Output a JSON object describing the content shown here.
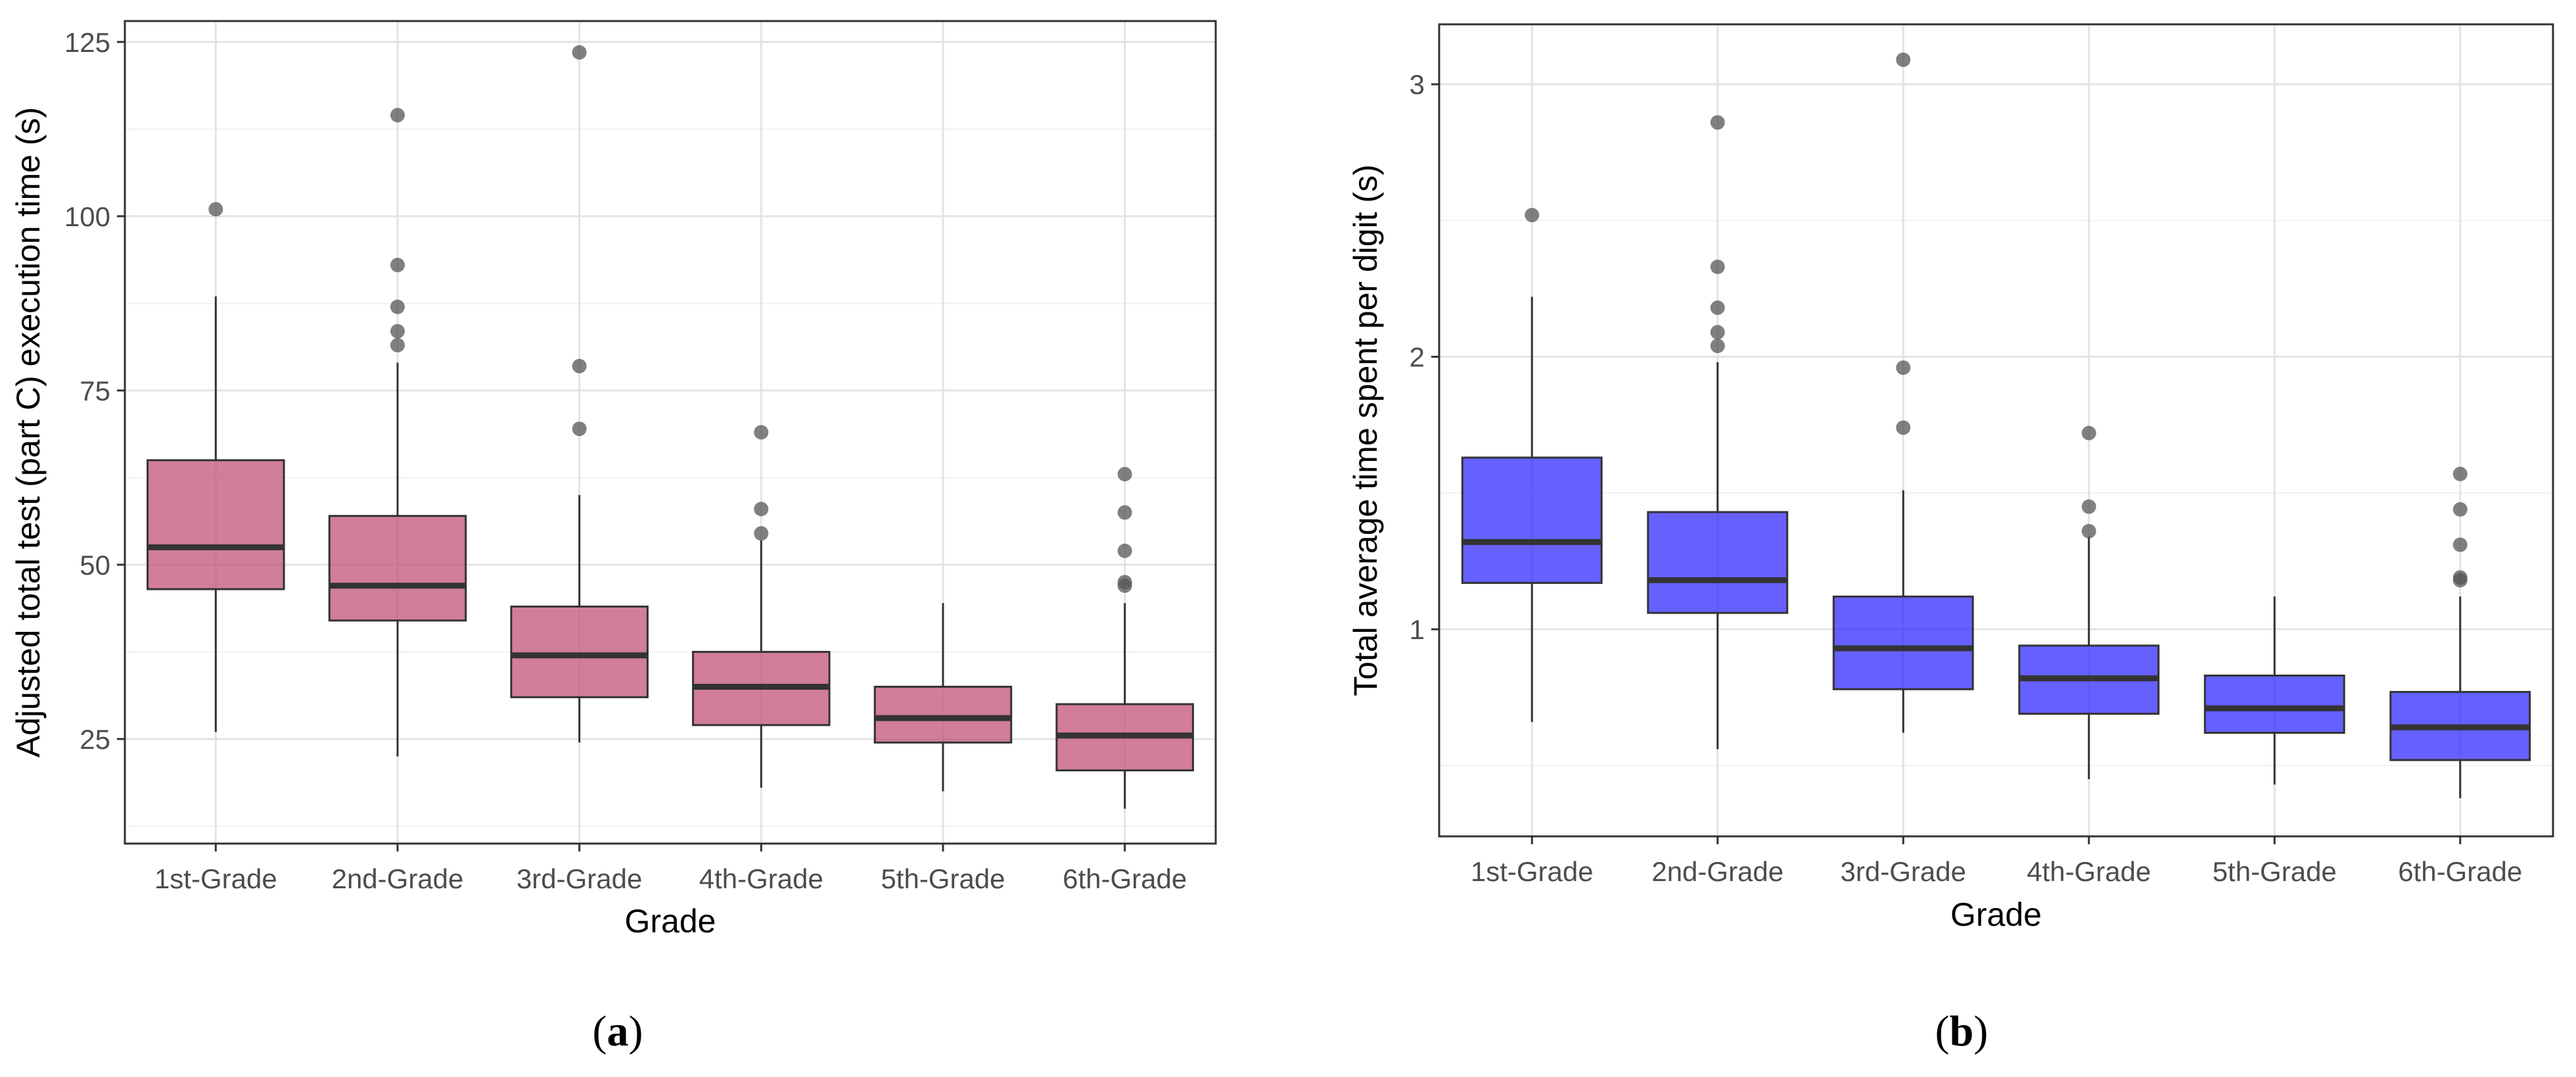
{
  "chart_data": [
    {
      "type": "box",
      "panel": "(a)",
      "caption": {
        "open": "(",
        "letter": "a",
        "close": ")"
      },
      "xlabel": "Grade",
      "ylabel": "Adjusted total test (part C) execution time (s)",
      "categories": [
        "1st-Grade",
        "2nd-Grade",
        "3rd-Grade",
        "4th-Grade",
        "5th-Grade",
        "6th-Grade"
      ],
      "yticks": [
        25,
        50,
        75,
        100,
        125
      ],
      "ylim": [
        10,
        128
      ],
      "grid": true,
      "fill_color": "#c2527a",
      "fill_opacity": 0.75,
      "boxes": [
        {
          "category": "1st-Grade",
          "whisker_low": 26,
          "q1": 46.5,
          "median": 52.5,
          "q3": 65,
          "whisker_high": 88.5,
          "outliers": [
            101
          ]
        },
        {
          "category": "2nd-Grade",
          "whisker_low": 22.5,
          "q1": 42,
          "median": 47,
          "q3": 57,
          "whisker_high": 79,
          "outliers": [
            81.5,
            83.5,
            87,
            93,
            114.5
          ]
        },
        {
          "category": "3rd-Grade",
          "whisker_low": 24.5,
          "q1": 31,
          "median": 37,
          "q3": 44,
          "whisker_high": 60,
          "outliers": [
            69.5,
            78.5,
            123.5
          ]
        },
        {
          "category": "4th-Grade",
          "whisker_low": 18,
          "q1": 27,
          "median": 32.5,
          "q3": 37.5,
          "whisker_high": 53.5,
          "outliers": [
            54.5,
            58,
            69
          ]
        },
        {
          "category": "5th-Grade",
          "whisker_low": 17.5,
          "q1": 24.5,
          "median": 28,
          "q3": 32.5,
          "whisker_high": 44.5,
          "outliers": []
        },
        {
          "category": "6th-Grade",
          "whisker_low": 15,
          "q1": 20.5,
          "median": 25.5,
          "q3": 30,
          "whisker_high": 44.5,
          "outliers": [
            47,
            47.5,
            52,
            57.5,
            63
          ]
        }
      ]
    },
    {
      "type": "box",
      "panel": "(b)",
      "caption": {
        "open": "(",
        "letter": "b",
        "close": ")"
      },
      "xlabel": "Grade",
      "ylabel": "Total average time spent per digit (s)",
      "categories": [
        "1st-Grade",
        "2nd-Grade",
        "3rd-Grade",
        "4th-Grade",
        "5th-Grade",
        "6th-Grade"
      ],
      "yticks": [
        1,
        2,
        3
      ],
      "ylim": [
        0.24,
        3.22
      ],
      "grid": true,
      "fill_color": "#2a22ff",
      "fill_opacity": 0.72,
      "boxes": [
        {
          "category": "1st-Grade",
          "whisker_low": 0.66,
          "q1": 1.17,
          "median": 1.32,
          "q3": 1.63,
          "whisker_high": 2.22,
          "outliers": [
            2.52
          ]
        },
        {
          "category": "2nd-Grade",
          "whisker_low": 0.56,
          "q1": 1.06,
          "median": 1.18,
          "q3": 1.43,
          "whisker_high": 1.98,
          "outliers": [
            2.04,
            2.09,
            2.18,
            2.33,
            2.86
          ]
        },
        {
          "category": "3rd-Grade",
          "whisker_low": 0.62,
          "q1": 0.78,
          "median": 0.93,
          "q3": 1.12,
          "whisker_high": 1.51,
          "outliers": [
            1.74,
            1.96,
            3.09
          ]
        },
        {
          "category": "4th-Grade",
          "whisker_low": 0.45,
          "q1": 0.69,
          "median": 0.82,
          "q3": 0.94,
          "whisker_high": 1.34,
          "outliers": [
            1.36,
            1.45,
            1.72
          ]
        },
        {
          "category": "5th-Grade",
          "whisker_low": 0.43,
          "q1": 0.62,
          "median": 0.71,
          "q3": 0.83,
          "whisker_high": 1.12,
          "outliers": []
        },
        {
          "category": "6th-Grade",
          "whisker_low": 0.38,
          "q1": 0.52,
          "median": 0.64,
          "q3": 0.77,
          "whisker_high": 1.12,
          "outliers": [
            1.18,
            1.19,
            1.31,
            1.44,
            1.57
          ]
        }
      ]
    }
  ]
}
